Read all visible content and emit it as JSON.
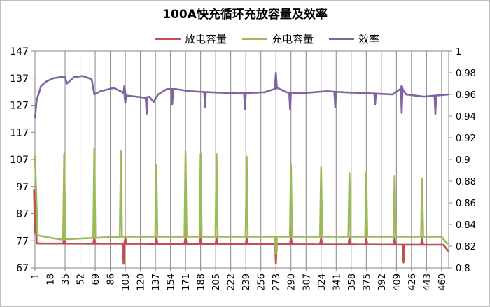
{
  "chart_data": {
    "type": "line",
    "title": "100A快充循环充放容量及效率",
    "x_tick_labels": [
      "1",
      "18",
      "35",
      "52",
      "69",
      "86",
      "103",
      "120",
      "137",
      "154",
      "171",
      "188",
      "205",
      "222",
      "239",
      "256",
      "273",
      "290",
      "307",
      "324",
      "341",
      "358",
      "375",
      "392",
      "409",
      "426",
      "443",
      "460"
    ],
    "x_range": [
      1,
      468
    ],
    "left_axis": {
      "ticks": [
        "67",
        "77",
        "87",
        "97",
        "107",
        "117",
        "127",
        "137",
        "147"
      ],
      "range": [
        67,
        147
      ]
    },
    "right_axis": {
      "ticks": [
        "0.8",
        "0.82",
        "0.84",
        "0.86",
        "0.88",
        "0.9",
        "0.92",
        "0.94",
        "0.96",
        "0.98",
        "1"
      ],
      "range": [
        0.8,
        1.0
      ]
    },
    "grid": "vertical",
    "legend": "top-center",
    "series": [
      {
        "name": "放电容量",
        "color": "#c0504d",
        "axis": "left",
        "base": [
          [
            1,
            96
          ],
          [
            3,
            76
          ],
          [
            462,
            75.5
          ],
          [
            468,
            73
          ]
        ],
        "dips": [
          [
            101,
            68.5
          ],
          [
            273,
            68.5
          ],
          [
            417,
            69
          ]
        ],
        "spikes": [
          [
            1,
            80
          ],
          [
            34,
            78
          ],
          [
            68,
            78
          ],
          [
            103,
            78
          ],
          [
            138,
            78.5
          ],
          [
            171,
            78.5
          ],
          [
            188,
            78
          ],
          [
            206,
            78
          ],
          [
            240,
            78
          ],
          [
            273,
            78.5
          ],
          [
            290,
            78
          ],
          [
            324,
            78
          ],
          [
            356,
            78
          ],
          [
            375,
            78
          ],
          [
            407,
            78
          ],
          [
            438,
            78
          ]
        ]
      },
      {
        "name": "充电容量",
        "color": "#9bbb59",
        "axis": "left",
        "base": [
          [
            1,
            108
          ],
          [
            4,
            79
          ],
          [
            20,
            78
          ],
          [
            30,
            77.5
          ],
          [
            100,
            78.5
          ],
          [
            290,
            78.5
          ],
          [
            460,
            78.5
          ],
          [
            466,
            76
          ]
        ],
        "spikes": [
          [
            1,
            108
          ],
          [
            34,
            109
          ],
          [
            68,
            111
          ],
          [
            98,
            110
          ],
          [
            138,
            105
          ],
          [
            171,
            110
          ],
          [
            188,
            109
          ],
          [
            206,
            109
          ],
          [
            240,
            108
          ],
          [
            273,
            72
          ],
          [
            290,
            105
          ],
          [
            324,
            104
          ],
          [
            356,
            102
          ],
          [
            375,
            102
          ],
          [
            407,
            101
          ],
          [
            438,
            100
          ]
        ]
      },
      {
        "name": "效率",
        "color": "#8064a2",
        "axis": "right",
        "base": [
          [
            1,
            0.938
          ],
          [
            3,
            0.955
          ],
          [
            8,
            0.968
          ],
          [
            14,
            0.972
          ],
          [
            22,
            0.975
          ],
          [
            30,
            0.976
          ],
          [
            35,
            0.976
          ],
          [
            37,
            0.97
          ],
          [
            45,
            0.976
          ],
          [
            55,
            0.977
          ],
          [
            65,
            0.974
          ],
          [
            68,
            0.96
          ],
          [
            75,
            0.963
          ],
          [
            90,
            0.966
          ],
          [
            100,
            0.962
          ],
          [
            104,
            0.959
          ],
          [
            115,
            0.958
          ],
          [
            125,
            0.957
          ],
          [
            130,
            0.958
          ],
          [
            135,
            0.953
          ],
          [
            140,
            0.96
          ],
          [
            150,
            0.965
          ],
          [
            160,
            0.965
          ],
          [
            175,
            0.963
          ],
          [
            200,
            0.962
          ],
          [
            230,
            0.961
          ],
          [
            260,
            0.962
          ],
          [
            275,
            0.966
          ],
          [
            285,
            0.962
          ],
          [
            300,
            0.961
          ],
          [
            330,
            0.963
          ],
          [
            350,
            0.962
          ],
          [
            380,
            0.961
          ],
          [
            405,
            0.96
          ],
          [
            415,
            0.966
          ],
          [
            420,
            0.96
          ],
          [
            440,
            0.958
          ],
          [
            468,
            0.96
          ]
        ],
        "spikes": [
          [
            102,
            0.968
          ],
          [
            273,
            0.98
          ],
          [
            415,
            0.968
          ]
        ],
        "dips": [
          [
            103,
            0.952
          ],
          [
            127,
            0.942
          ],
          [
            156,
            0.951
          ],
          [
            193,
            0.948
          ],
          [
            238,
            0.946
          ],
          [
            289,
            0.946
          ],
          [
            340,
            0.948
          ],
          [
            385,
            0.951
          ],
          [
            415,
            0.943
          ],
          [
            453,
            0.942
          ]
        ]
      }
    ]
  }
}
